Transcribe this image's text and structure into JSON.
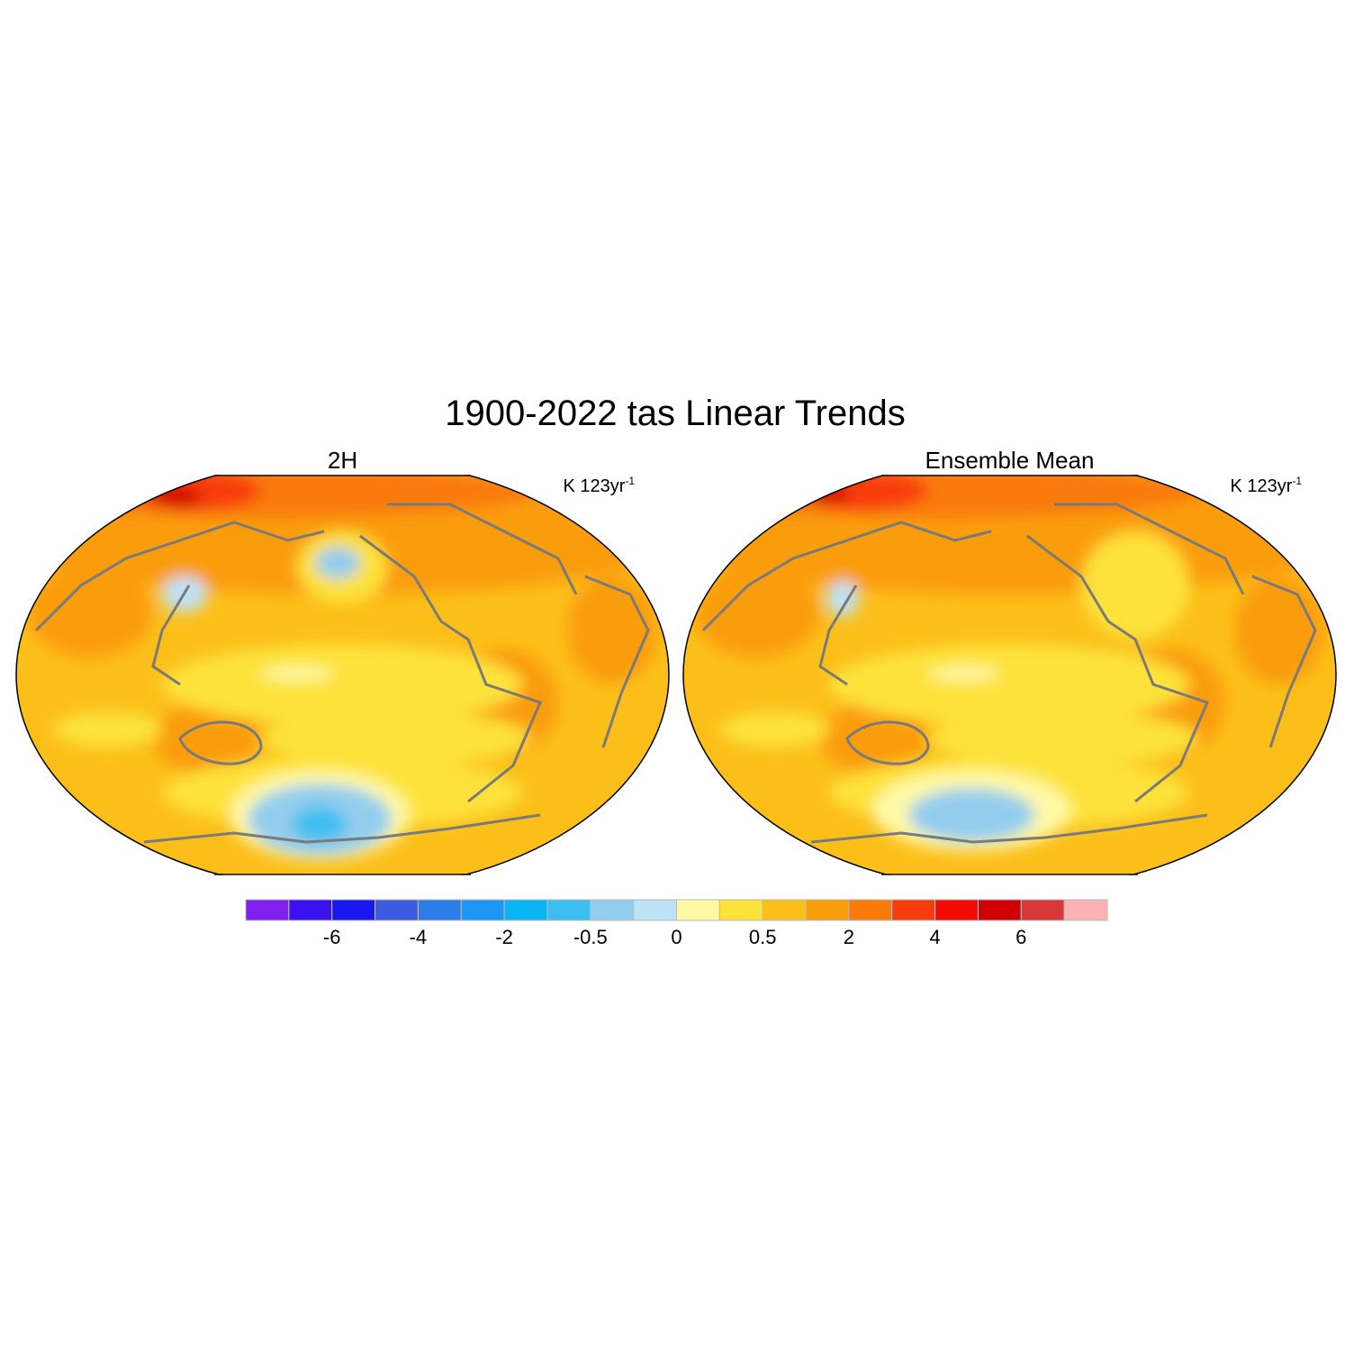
{
  "title": "1900-2022 tas Linear Trends",
  "panels": [
    {
      "title": "2H",
      "units": "K 123yr",
      "units_exponent": "-1"
    },
    {
      "title": "Ensemble Mean",
      "units": "K 123yr",
      "units_exponent": "-1"
    }
  ],
  "colorbar": {
    "ticks": [
      -6,
      -4,
      -2,
      -0.5,
      0,
      0.5,
      2,
      4,
      6
    ],
    "colors": [
      "#7f1ff0",
      "#3a10f0",
      "#1717f0",
      "#3c5be0",
      "#2d7de8",
      "#1d96f5",
      "#0ab4f5",
      "#3cbff0",
      "#93cdee",
      "#bde2f5",
      "#fff9a6",
      "#fde23a",
      "#fcbf1a",
      "#fa9d0b",
      "#fa7a0a",
      "#f83c0c",
      "#f50a05",
      "#d10005",
      "#d83838",
      "#fbb2b2"
    ]
  }
}
